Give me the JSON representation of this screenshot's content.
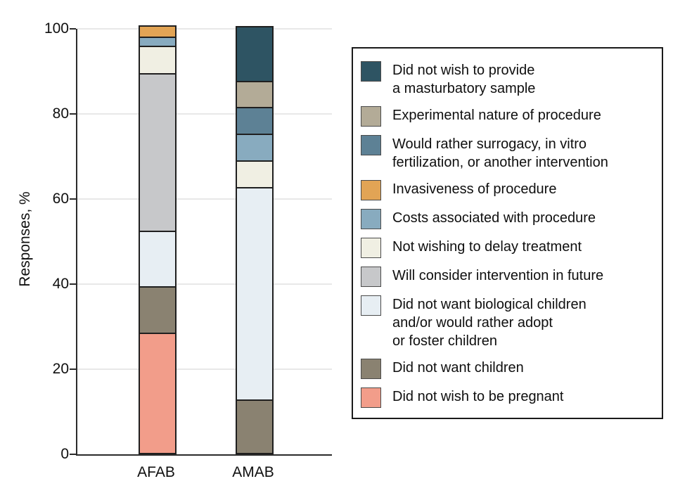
{
  "figure": {
    "y_axis_title": "Responses, %",
    "y_ticks": [
      0,
      20,
      40,
      60,
      80,
      100
    ],
    "axis_color": "#2b2b2b",
    "gridline_color": "#e8e8e8",
    "segment_border_color": "#1f1f1f"
  },
  "chart_data": {
    "type": "bar",
    "subtype": "stacked-vertical",
    "title": "",
    "xlabel": "",
    "ylabel": "Responses, %",
    "ylim": [
      0,
      100
    ],
    "grid": true,
    "legend_position": "right",
    "categories": [
      "AFAB",
      "AMAB"
    ],
    "series": [
      {
        "name": "Did not wish to provide a masturbatory sample",
        "label_lines": [
          "Did not wish to provide",
          "a masturbatory sample"
        ],
        "color": "#2e5463",
        "values": [
          0,
          12.5
        ]
      },
      {
        "name": "Experimental nature of procedure",
        "label_lines": [
          "Experimental nature of procedure"
        ],
        "color": "#b3ab97",
        "values": [
          0,
          6.25
        ]
      },
      {
        "name": "Would rather surrogacy, in vitro fertilization, or another intervention",
        "label_lines": [
          "Would rather surrogacy, in vitro",
          "fertilization, or another intervention"
        ],
        "color": "#5d8195",
        "values": [
          0,
          6.25
        ]
      },
      {
        "name": "Invasiveness of procedure",
        "label_lines": [
          "Invasiveness of procedure"
        ],
        "color": "#e2a455",
        "values": [
          2.2,
          0
        ]
      },
      {
        "name": "Costs associated with procedure",
        "label_lines": [
          "Costs associated with procedure"
        ],
        "color": "#88abbf",
        "values": [
          2.2,
          6.25
        ]
      },
      {
        "name": "Not wishing to delay treatment",
        "label_lines": [
          "Not wishing to delay treatment"
        ],
        "color": "#f0efe3",
        "values": [
          6.5,
          6.25
        ]
      },
      {
        "name": "Will consider intervention in future",
        "label_lines": [
          "Will consider intervention in future"
        ],
        "color": "#c7c8ca",
        "values": [
          37,
          0
        ]
      },
      {
        "name": "Did not want biological children and/or would rather adopt or foster children",
        "label_lines": [
          "Did not want biological children",
          "and/or would rather adopt",
          "or foster children"
        ],
        "color": "#e7eef3",
        "values": [
          13,
          50
        ]
      },
      {
        "name": "Did not want children",
        "label_lines": [
          "Did not want children"
        ],
        "color": "#8a8271",
        "values": [
          10.9,
          12.5
        ]
      },
      {
        "name": "Did not wish to be pregnant",
        "label_lines": [
          "Did not wish to be pregnant"
        ],
        "color": "#f29d8a",
        "values": [
          28.3,
          0
        ]
      }
    ]
  }
}
